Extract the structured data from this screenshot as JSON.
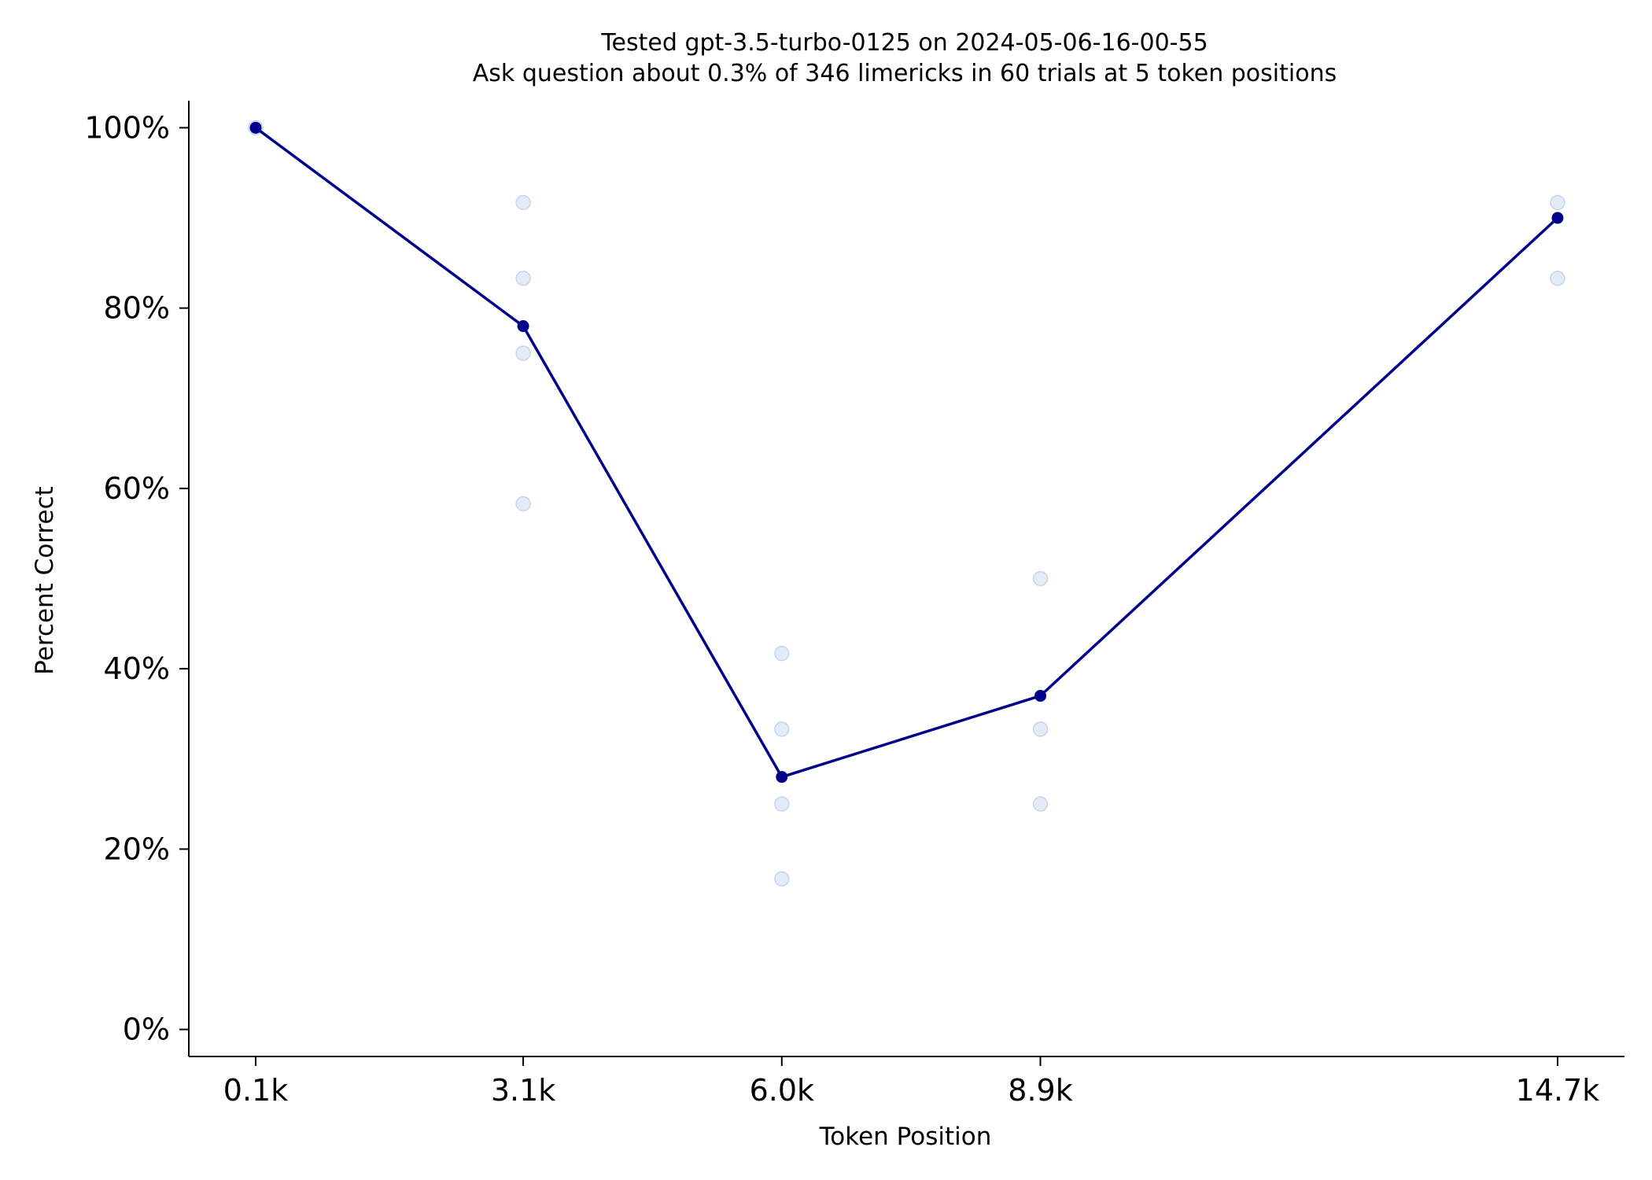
{
  "chart_data": {
    "type": "line",
    "title": "Tested gpt-3.5-turbo-0125 on 2024-05-06-16-00-55",
    "subtitle": "Ask question about 0.3% of 346 limericks in 60 trials at 5 token positions",
    "xlabel": "Token Position",
    "ylabel": "Percent Correct",
    "x": [
      100,
      3100,
      6000,
      8900,
      14700
    ],
    "x_tick_labels": [
      "0.1k",
      "3.1k",
      "6.0k",
      "8.9k",
      "14.7k"
    ],
    "y_ticks": [
      0,
      20,
      40,
      60,
      80,
      100
    ],
    "y_tick_labels": [
      "0%",
      "20%",
      "40%",
      "60%",
      "80%",
      "100%"
    ],
    "xlim": [
      -650,
      15450
    ],
    "ylim": [
      -3,
      103
    ],
    "grid": false,
    "series": [
      {
        "values": [
          100,
          78,
          28,
          37,
          90
        ],
        "color": "#00008b"
      }
    ],
    "trials": [
      {
        "x": 100,
        "values": [
          100
        ]
      },
      {
        "x": 3100,
        "values": [
          91.7,
          83.3,
          75,
          58.3
        ]
      },
      {
        "x": 6000,
        "values": [
          41.7,
          33.3,
          25,
          16.7
        ]
      },
      {
        "x": 8900,
        "values": [
          50,
          33.3,
          25
        ]
      },
      {
        "x": 14700,
        "values": [
          91.7,
          83.3
        ]
      }
    ],
    "trial_color": "#b8cdf0"
  }
}
